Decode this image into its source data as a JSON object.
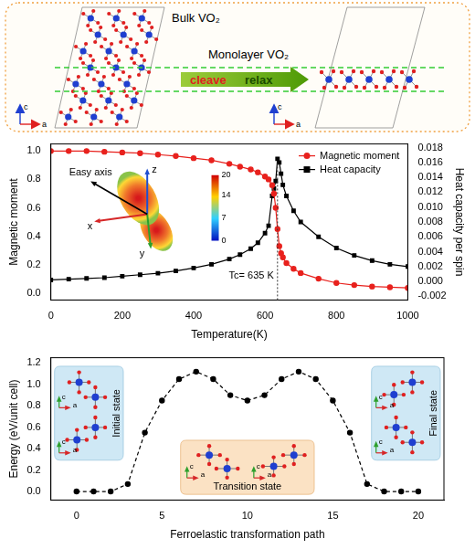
{
  "diagram": {
    "bulk_label": "Bulk VO₂",
    "monolayer_label": "Monolayer VO₂",
    "arrow_texts": [
      "cleave",
      "relax"
    ],
    "axis_labels": [
      "c",
      "a"
    ]
  },
  "chart_data": [
    {
      "type": "line",
      "x_label": "Temperature(K)",
      "y_label": "Magnetic moment",
      "y2_label": "Heat capacity per spin",
      "grid": false,
      "legend": "upper right",
      "xlim": [
        0,
        1000
      ],
      "xticks": [
        0,
        200,
        400,
        600,
        800,
        1000
      ],
      "ylim": [
        -0.05,
        1.05
      ],
      "yticks": [
        {
          "value": 0,
          "label": "0.0"
        },
        0.2,
        0.4,
        0.6,
        0.8,
        {
          "value": 1,
          "label": "1.0"
        }
      ],
      "y2lim": [
        -0.0025,
        0.0185
      ],
      "y2ticks": [
        -0.002,
        {
          "value": 0,
          "label": "0.000"
        },
        0.002,
        0.004,
        0.006,
        0.008,
        {
          "value": 0.01,
          "label": "0.010"
        },
        0.012,
        0.014,
        0.016,
        0.018
      ],
      "x": [
        0,
        50,
        100,
        150,
        200,
        250,
        300,
        350,
        400,
        450,
        500,
        530,
        560,
        580,
        600,
        610,
        620,
        625,
        630,
        635,
        640,
        645,
        650,
        660,
        680,
        700,
        750,
        800,
        850,
        900,
        950,
        1000
      ],
      "series": [
        {
          "name": "Magnetic moment",
          "color": "#e8211d",
          "marker": "circle",
          "values": [
            1.0,
            1.0,
            1.0,
            0.995,
            0.99,
            0.985,
            0.975,
            0.965,
            0.95,
            0.935,
            0.91,
            0.89,
            0.87,
            0.85,
            0.82,
            0.8,
            0.76,
            0.7,
            0.6,
            0.45,
            0.33,
            0.28,
            0.25,
            0.21,
            0.17,
            0.14,
            0.1,
            0.07,
            0.055,
            0.045,
            0.04,
            0.035
          ]
        },
        {
          "name": "Heat capacity",
          "color": "#000000",
          "marker": "square",
          "axis": "y2",
          "values": [
            0.0002,
            0.0003,
            0.0004,
            0.0005,
            0.0007,
            0.0009,
            0.0011,
            0.0014,
            0.0018,
            0.0023,
            0.003,
            0.0036,
            0.0044,
            0.0052,
            0.0065,
            0.0075,
            0.0115,
            0.0125,
            0.0135,
            0.0165,
            0.016,
            0.0145,
            0.013,
            0.0115,
            0.0095,
            0.008,
            0.006,
            0.0045,
            0.0035,
            0.0028,
            0.0023,
            0.002
          ]
        }
      ],
      "annotations": [
        {
          "text": "Tc= 635 K",
          "x": 635
        }
      ],
      "inset": {
        "label": "Easy axis",
        "axes": [
          "x",
          "y",
          "z"
        ],
        "colorbar": {
          "range": [
            0,
            20
          ],
          "ticks": [
            0,
            7,
            14,
            20
          ]
        }
      }
    },
    {
      "type": "line",
      "x_label": "Ferroelastic transformation path",
      "y_label": "Energy (eV/unit cell)",
      "grid": false,
      "xlim": [
        -1.5,
        21.5
      ],
      "xticks": [
        0,
        5,
        10,
        15,
        20
      ],
      "ylim": [
        -0.08,
        1.25
      ],
      "yticks": [
        {
          "value": 0,
          "label": "0.0"
        },
        0.2,
        0.4,
        0.6,
        0.8,
        {
          "value": 1,
          "label": "1.0"
        },
        1.2
      ],
      "x": [
        0,
        1,
        2,
        3,
        4,
        5,
        6,
        7,
        8,
        9,
        10,
        11,
        12,
        13,
        14,
        15,
        16,
        17,
        18,
        19,
        20
      ],
      "values": [
        0.0,
        0.0,
        0.0,
        0.07,
        0.55,
        0.85,
        1.05,
        1.12,
        1.05,
        0.9,
        0.85,
        0.9,
        1.05,
        1.12,
        1.05,
        0.85,
        0.55,
        0.07,
        0.0,
        0.0,
        0.0
      ],
      "color": "#000000",
      "marker": "circle",
      "line_style": "dashed",
      "insets": [
        "Initial state",
        "Transition state",
        "Final state"
      ],
      "inset_axis_labels": [
        "c",
        "a"
      ]
    }
  ]
}
